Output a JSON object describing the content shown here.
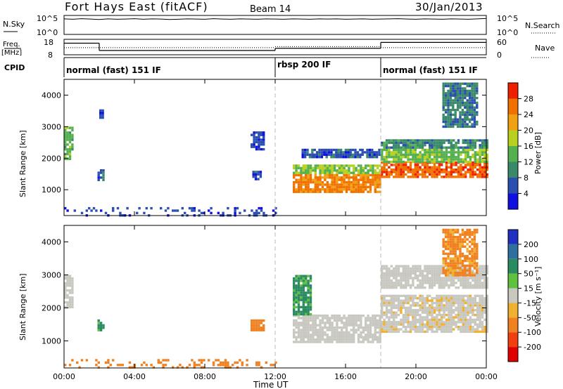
{
  "header": {
    "station": "Fort Hays East (fitACF)",
    "beam": "Beam 14",
    "date": "30/Jan/2013"
  },
  "noise_panel": {
    "left_label": "N.Sky",
    "right_label": "N.Search",
    "tick_top": "10^5",
    "tick_bottom": "10^0",
    "nsky_values": [
      0.82,
      0.8,
      0.83,
      0.81,
      0.79,
      0.82,
      0.8,
      0.81,
      0.83,
      0.8,
      0.82,
      0.81,
      0.79,
      0.8,
      0.82,
      0.81,
      0.8,
      0.83,
      0.81,
      0.8,
      0.82,
      0.81,
      0.8,
      0.82,
      0.81,
      0.8,
      0.82,
      0.81,
      0.8,
      0.82,
      0.81,
      0.82,
      0.8,
      0.81,
      0.82,
      0.8,
      0.81,
      0.82,
      0.83,
      0.81,
      0.8,
      0.82,
      0.81,
      0.8,
      0.82,
      0.81,
      0.8,
      0.82,
      0.84
    ]
  },
  "freq_panel": {
    "left_label_1": "Freq.",
    "left_label_2": "[MHz]",
    "right_label": "Nave",
    "left_ticks": [
      "18",
      "8"
    ],
    "right_ticks": [
      "60",
      "0"
    ],
    "freq_segments": [
      {
        "start": 0,
        "end": 2.0,
        "value": 15.5
      },
      {
        "start": 2.0,
        "end": 12.0,
        "value": 10.8
      },
      {
        "start": 12.0,
        "end": 18.0,
        "value": 12.2
      },
      {
        "start": 18.0,
        "end": 24.0,
        "value": 16.0
      }
    ],
    "nave_segments": [
      {
        "start": 0,
        "end": 12.0,
        "value": 0.55
      },
      {
        "start": 12.0,
        "end": 18.0,
        "value": 0.62
      },
      {
        "start": 18.0,
        "end": 24.0,
        "value": 0.55
      }
    ]
  },
  "cpid": {
    "label": "CPID",
    "modes": [
      {
        "start": 0,
        "label": "normal (fast) 151 IF"
      },
      {
        "start": 12,
        "label": "rbsp 200 IF"
      },
      {
        "start": 18,
        "label": "normal (fast) 151 IF"
      }
    ]
  },
  "x_axis": {
    "title": "Time UT",
    "tick_labels": [
      "00:00",
      "04:00",
      "08:00",
      "12:00",
      "16:00",
      "20:00",
      "00:00"
    ],
    "range_hours": [
      0,
      24
    ]
  },
  "power_panel": {
    "ylabel": "Slant Range [km]",
    "colorbar_label": "Power [dB]",
    "colorbar_ticks": [
      "4",
      "8",
      "12",
      "16",
      "20",
      "24",
      "28"
    ],
    "colors": [
      "#1010e0",
      "#2a4fb0",
      "#3a8a6a",
      "#55b050",
      "#b8d020",
      "#f0a010",
      "#f07000",
      "#ee2000"
    ]
  },
  "velocity_panel": {
    "ylabel": "Slant Range [km]",
    "colorbar_label": "Velocity [m s⁻¹]",
    "colorbar_ticks": [
      "200",
      "100",
      "50",
      "15",
      "-15",
      "-50",
      "-100",
      "-200"
    ],
    "colors": [
      "#2030c0",
      "#3070a0",
      "#2a8a60",
      "#60c040",
      "#c8c8c0",
      "#f0b030",
      "#f08020",
      "#f04010",
      "#e00000"
    ]
  },
  "chart_data": [
    {
      "type": "heatmap",
      "title": "Fort Hays East (fitACF) Beam 14 30/Jan/2013",
      "xlabel": "Time UT",
      "ylabel": "Slant Range [km]",
      "xlim": [
        0,
        24
      ],
      "ylim": [
        180,
        4500
      ],
      "y_ticks": [
        1000,
        2000,
        3000,
        4000
      ],
      "colorbar": {
        "label": "Power [dB]",
        "range": [
          0,
          30
        ]
      },
      "regions": [
        {
          "t0": 0.0,
          "t1": 0.5,
          "r0": 2000,
          "r1": 3000,
          "value": 14
        },
        {
          "t0": 1.9,
          "t1": 2.3,
          "r0": 1300,
          "r1": 1650,
          "value": 6
        },
        {
          "t0": 2.0,
          "t1": 2.2,
          "r0": 3300,
          "r1": 3550,
          "value": 4
        },
        {
          "t0": 10.6,
          "t1": 11.4,
          "r0": 2300,
          "r1": 2850,
          "value": 5
        },
        {
          "t0": 10.7,
          "t1": 11.2,
          "r0": 1300,
          "r1": 1600,
          "value": 6
        },
        {
          "t0": 13.0,
          "t1": 18.0,
          "r0": 950,
          "r1": 1500,
          "value": 25
        },
        {
          "t0": 13.0,
          "t1": 18.0,
          "r0": 1500,
          "r1": 1800,
          "value": 16
        },
        {
          "t0": 13.5,
          "t1": 18.0,
          "r0": 2000,
          "r1": 2300,
          "value": 6
        },
        {
          "t0": 18.0,
          "t1": 24.0,
          "r0": 1400,
          "r1": 1900,
          "value": 27
        },
        {
          "t0": 18.0,
          "t1": 24.0,
          "r0": 1900,
          "r1": 2300,
          "value": 15
        },
        {
          "t0": 18.0,
          "t1": 24.0,
          "r0": 2300,
          "r1": 2600,
          "value": 10
        },
        {
          "t0": 21.5,
          "t1": 23.5,
          "r0": 3000,
          "r1": 4400,
          "value": 9
        },
        {
          "t0": 0.0,
          "t1": 12.0,
          "r0": 180,
          "r1": 450,
          "value": 5
        }
      ]
    },
    {
      "type": "heatmap",
      "title": "",
      "xlabel": "Time UT",
      "ylabel": "Slant Range [km]",
      "xlim": [
        0,
        24
      ],
      "ylim": [
        180,
        4500
      ],
      "y_ticks": [
        1000,
        2000,
        3000,
        4000
      ],
      "colorbar": {
        "label": "Velocity [m s⁻¹]",
        "range": [
          -200,
          200
        ]
      },
      "regions": [
        {
          "t0": 0.0,
          "t1": 0.5,
          "r0": 2000,
          "r1": 3000,
          "value": 0
        },
        {
          "t0": 1.9,
          "t1": 2.3,
          "r0": 1300,
          "r1": 1650,
          "value": 40
        },
        {
          "t0": 10.6,
          "t1": 11.3,
          "r0": 1300,
          "r1": 1650,
          "value": -60
        },
        {
          "t0": 13.0,
          "t1": 18.0,
          "r0": 950,
          "r1": 1800,
          "value": 0
        },
        {
          "t0": 13.0,
          "t1": 14.0,
          "r0": 1800,
          "r1": 3000,
          "value": 40
        },
        {
          "t0": 18.0,
          "t1": 24.0,
          "r0": 1300,
          "r1": 2400,
          "value": -5
        },
        {
          "t0": 18.0,
          "t1": 24.0,
          "r0": 2600,
          "r1": 3300,
          "value": 0
        },
        {
          "t0": 21.5,
          "t1": 23.5,
          "r0": 3000,
          "r1": 4400,
          "value": -40
        },
        {
          "t0": 0.0,
          "t1": 12.0,
          "r0": 180,
          "r1": 450,
          "value": -60
        }
      ]
    }
  ]
}
